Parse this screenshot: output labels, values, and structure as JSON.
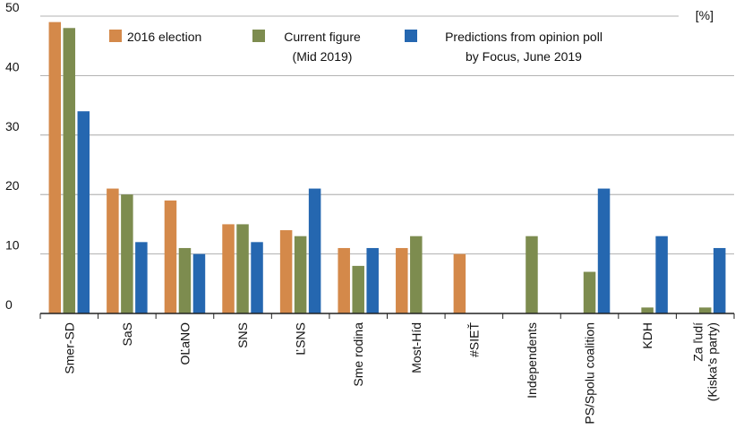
{
  "chart_data": {
    "type": "bar",
    "unit_label": "[%]",
    "ylim": [
      0,
      50
    ],
    "yticks": [
      "0",
      "10",
      "20",
      "30",
      "40",
      "50"
    ],
    "grid": true,
    "legend_position": "top",
    "categories": [
      [
        "Smer-SD"
      ],
      [
        "SaS"
      ],
      [
        "OĽaNO"
      ],
      [
        "SNS"
      ],
      [
        "ĽSNS"
      ],
      [
        "Sme rodina"
      ],
      [
        "Most-Híd"
      ],
      [
        "#SIEŤ"
      ],
      [
        "Independents"
      ],
      [
        "PS/Spolu coalition"
      ],
      [
        "KDH"
      ],
      [
        "Za ľudí",
        "(Kiska's party)"
      ]
    ],
    "series": [
      {
        "name": [
          "2016 election"
        ],
        "color": "#d4894a",
        "values": [
          49,
          21,
          19,
          15,
          14,
          11,
          11,
          10,
          null,
          null,
          null,
          null
        ]
      },
      {
        "name": [
          "Current figure",
          "(Mid 2019)"
        ],
        "color": "#7d8c4f",
        "values": [
          48,
          20,
          11,
          15,
          13,
          8,
          13,
          null,
          13,
          7,
          1,
          1
        ]
      },
      {
        "name": [
          "Predictions from opinion poll",
          "by Focus, June 2019"
        ],
        "color": "#2567b0",
        "values": [
          34,
          12,
          10,
          12,
          21,
          11,
          null,
          null,
          null,
          21,
          13,
          11
        ]
      }
    ]
  }
}
